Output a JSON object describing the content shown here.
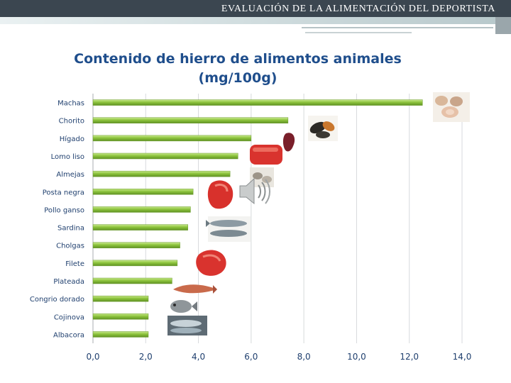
{
  "header": {
    "title": "EVALUACIÓN DE LA ALIMENTACIÓN DEL DEPORTISTA"
  },
  "chart_data": {
    "type": "bar",
    "orientation": "horizontal",
    "title": "Contenido de hierro de alimentos animales",
    "subtitle": "(mg/100g)",
    "categories": [
      "Machas",
      "Chorito",
      "Hígado",
      "Lomo liso",
      "Almejas",
      "Posta negra",
      "Pollo ganso",
      "Sardina",
      "Cholgas",
      "Filete",
      "Plateada",
      "Congrio dorado",
      "Cojinova",
      "Albacora"
    ],
    "values": [
      12.5,
      7.4,
      6.0,
      5.5,
      5.2,
      3.8,
      3.7,
      3.6,
      3.3,
      3.2,
      3.0,
      2.1,
      2.1,
      2.1
    ],
    "xlim": [
      0,
      14
    ],
    "ticks": [
      "0,0",
      "2,0",
      "4,0",
      "6,0",
      "8,0",
      "10,0",
      "12,0",
      "14,0"
    ],
    "tick_values": [
      0,
      2,
      4,
      6,
      8,
      10,
      12,
      14
    ],
    "grid": true,
    "bar_color": "#8dc43d",
    "bar_color_light": "#c8e88c",
    "bar_color_dark": "#5f9123"
  },
  "colors": {
    "title": "#1f4e8c",
    "header_bg": "#3b4650"
  },
  "icons": [
    "shellfish-image",
    "mussel-image",
    "liver-image",
    "beef-steak-image",
    "clams-image",
    "beef-image",
    "sardines-image",
    "fillet-image",
    "eel-image",
    "fish-image",
    "tuna-image",
    "speaker-icon"
  ]
}
